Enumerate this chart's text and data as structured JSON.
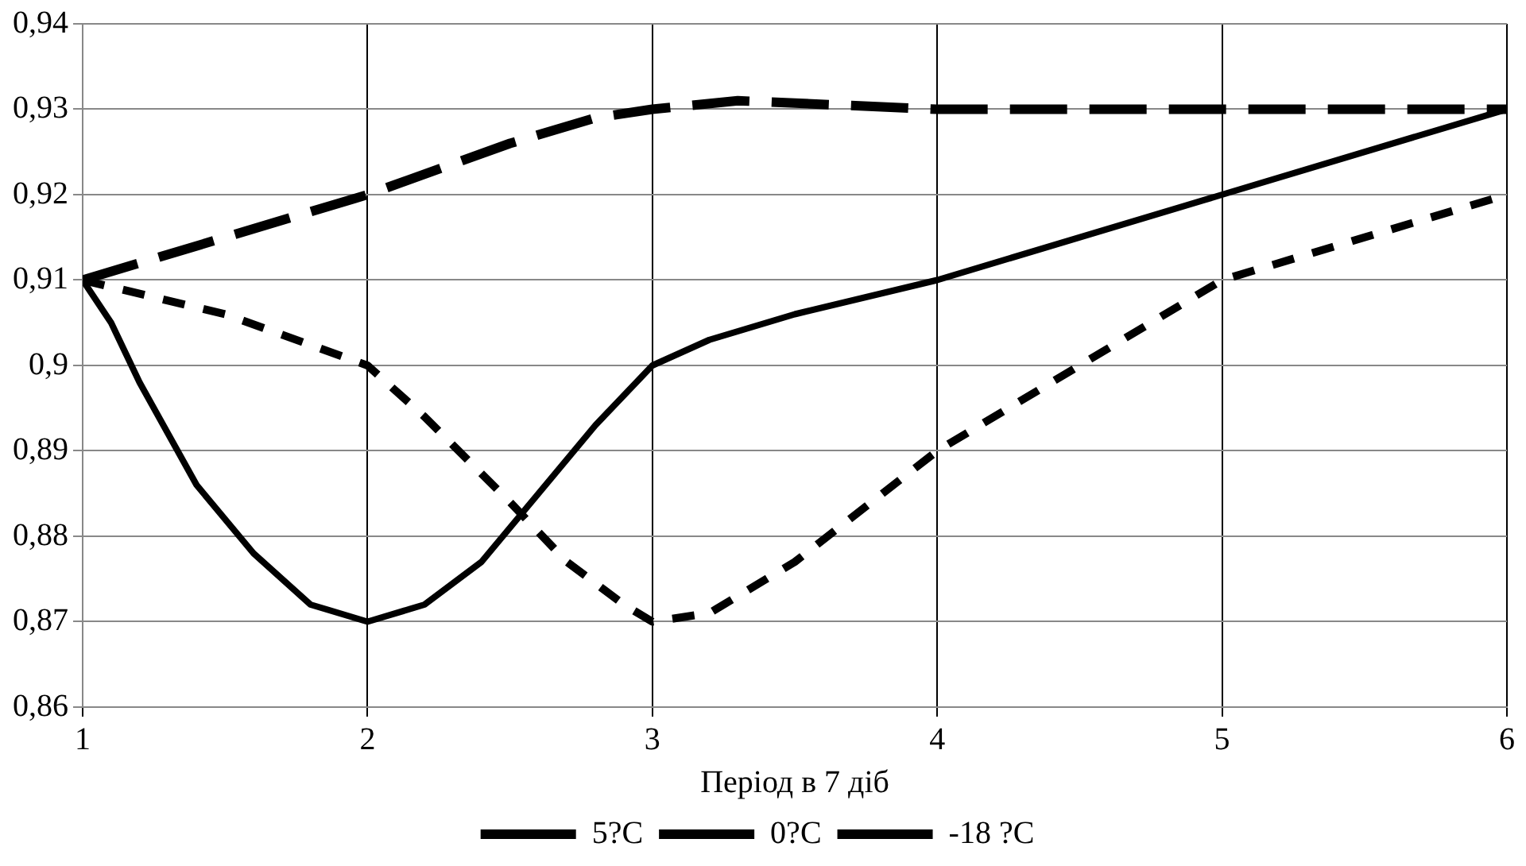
{
  "chart_data": {
    "type": "line",
    "xlabel": "Період в 7 діб",
    "xlim": [
      1,
      6
    ],
    "xticks": [
      1,
      2,
      3,
      4,
      5,
      6
    ],
    "ylim": [
      0.86,
      0.94
    ],
    "yticks": [
      {
        "value": 0.86,
        "label": "0,86"
      },
      {
        "value": 0.87,
        "label": "0,87"
      },
      {
        "value": 0.88,
        "label": "0,88"
      },
      {
        "value": 0.89,
        "label": "0,89"
      },
      {
        "value": 0.9,
        "label": "0,9"
      },
      {
        "value": 0.91,
        "label": "0,91"
      },
      {
        "value": 0.92,
        "label": "0,92"
      },
      {
        "value": 0.93,
        "label": "0,93"
      },
      {
        "value": 0.94,
        "label": "0,94"
      }
    ],
    "grid": true,
    "legend": "bottom",
    "marker": "none",
    "series": [
      {
        "name": "5?C",
        "color": "#000000",
        "line_style": "dashed",
        "x": [
          1,
          2,
          2.5,
          2.8,
          3,
          3.3,
          4,
          5,
          6
        ],
        "values": [
          0.91,
          0.92,
          0.926,
          0.929,
          0.93,
          0.931,
          0.93,
          0.93,
          0.93
        ]
      },
      {
        "name": "0?C",
        "color": "#000000",
        "line_style": "solid",
        "x": [
          1,
          1.1,
          1.2,
          1.4,
          1.6,
          1.8,
          2,
          2.2,
          2.4,
          2.6,
          2.8,
          3,
          3.2,
          3.5,
          4,
          5,
          6
        ],
        "values": [
          0.91,
          0.905,
          0.898,
          0.886,
          0.878,
          0.872,
          0.87,
          0.872,
          0.877,
          0.885,
          0.893,
          0.9,
          0.903,
          0.906,
          0.91,
          0.92,
          0.93
        ]
      },
      {
        "name": "-18 ?C",
        "color": "#000000",
        "line_style": "dotted",
        "x": [
          1,
          1.5,
          2,
          2.2,
          2.5,
          2.7,
          2.9,
          3,
          3.2,
          3.5,
          4,
          4.5,
          5,
          6
        ],
        "values": [
          0.91,
          0.906,
          0.9,
          0.894,
          0.884,
          0.877,
          0.872,
          0.87,
          0.871,
          0.877,
          0.89,
          0.9,
          0.91,
          0.92
        ]
      }
    ]
  }
}
